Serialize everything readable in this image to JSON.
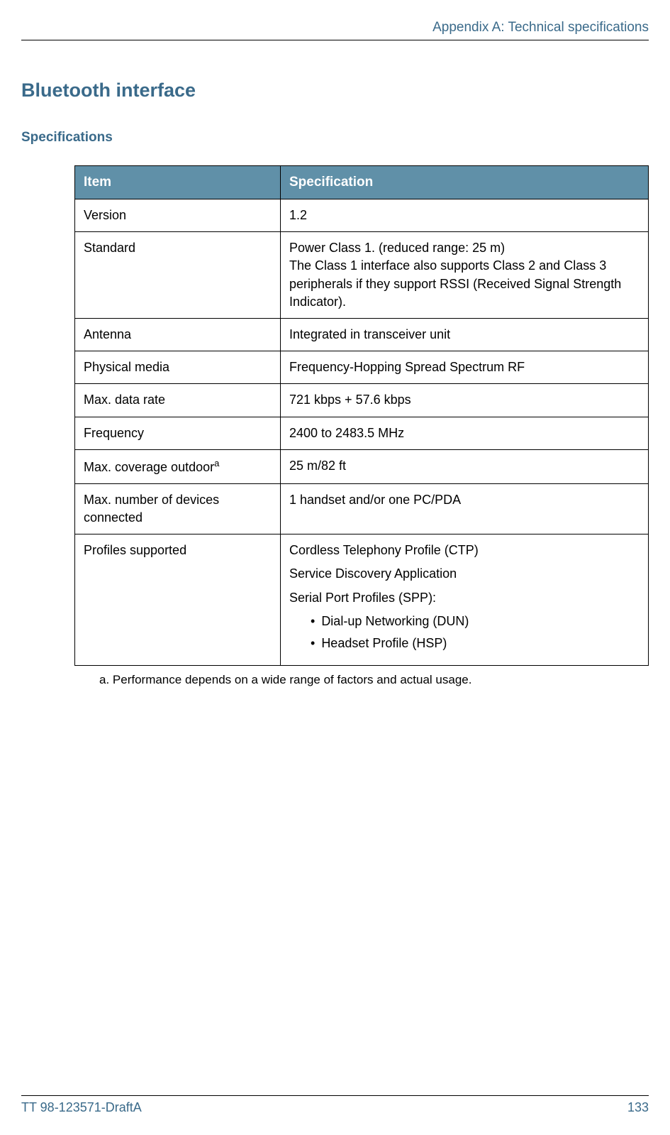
{
  "header": {
    "appendix": "Appendix A: Technical specifications"
  },
  "section": {
    "title": "Bluetooth interface",
    "subtitle": "Specifications"
  },
  "table": {
    "headers": {
      "item": "Item",
      "spec": "Specification"
    },
    "rows": {
      "version": {
        "item": "Version",
        "spec": "1.2"
      },
      "standard": {
        "item": "Standard",
        "spec_line1": "Power Class 1. (reduced range: 25 m)",
        "spec_line2": "The Class 1 interface also supports Class 2 and Class 3 peripherals if they support RSSI (Received Signal Strength Indicator)."
      },
      "antenna": {
        "item": "Antenna",
        "spec": "Integrated in transceiver unit"
      },
      "physical_media": {
        "item": "Physical media",
        "spec": "Frequency-Hopping Spread Spectrum RF"
      },
      "data_rate": {
        "item": "Max. data rate",
        "spec": "721 kbps + 57.6 kbps"
      },
      "frequency": {
        "item": "Frequency",
        "spec": "2400 to 2483.5 MHz"
      },
      "coverage": {
        "item": "Max. coverage outdoor",
        "sup": "a",
        "spec": "25 m/82 ft"
      },
      "max_devices": {
        "item": "Max. number of devices connected",
        "spec": "1 handset and/or one PC/PDA"
      },
      "profiles": {
        "item": "Profiles supported",
        "line1": "Cordless Telephony Profile (CTP)",
        "line2": "Service Discovery Application",
        "line3": "Serial Port Profiles (SPP):",
        "sub1": "Dial-up Networking (DUN)",
        "sub2": "Headset Profile (HSP)"
      }
    }
  },
  "footnote": {
    "text": "a.  Performance depends on a wide range of factors and actual usage."
  },
  "footer": {
    "doc_id": "TT 98-123571-DraftA",
    "page_number": "133"
  },
  "colors": {
    "accent": "#3a6a8a",
    "header_bg": "#6090a8",
    "border": "#000000",
    "background": "#ffffff"
  }
}
